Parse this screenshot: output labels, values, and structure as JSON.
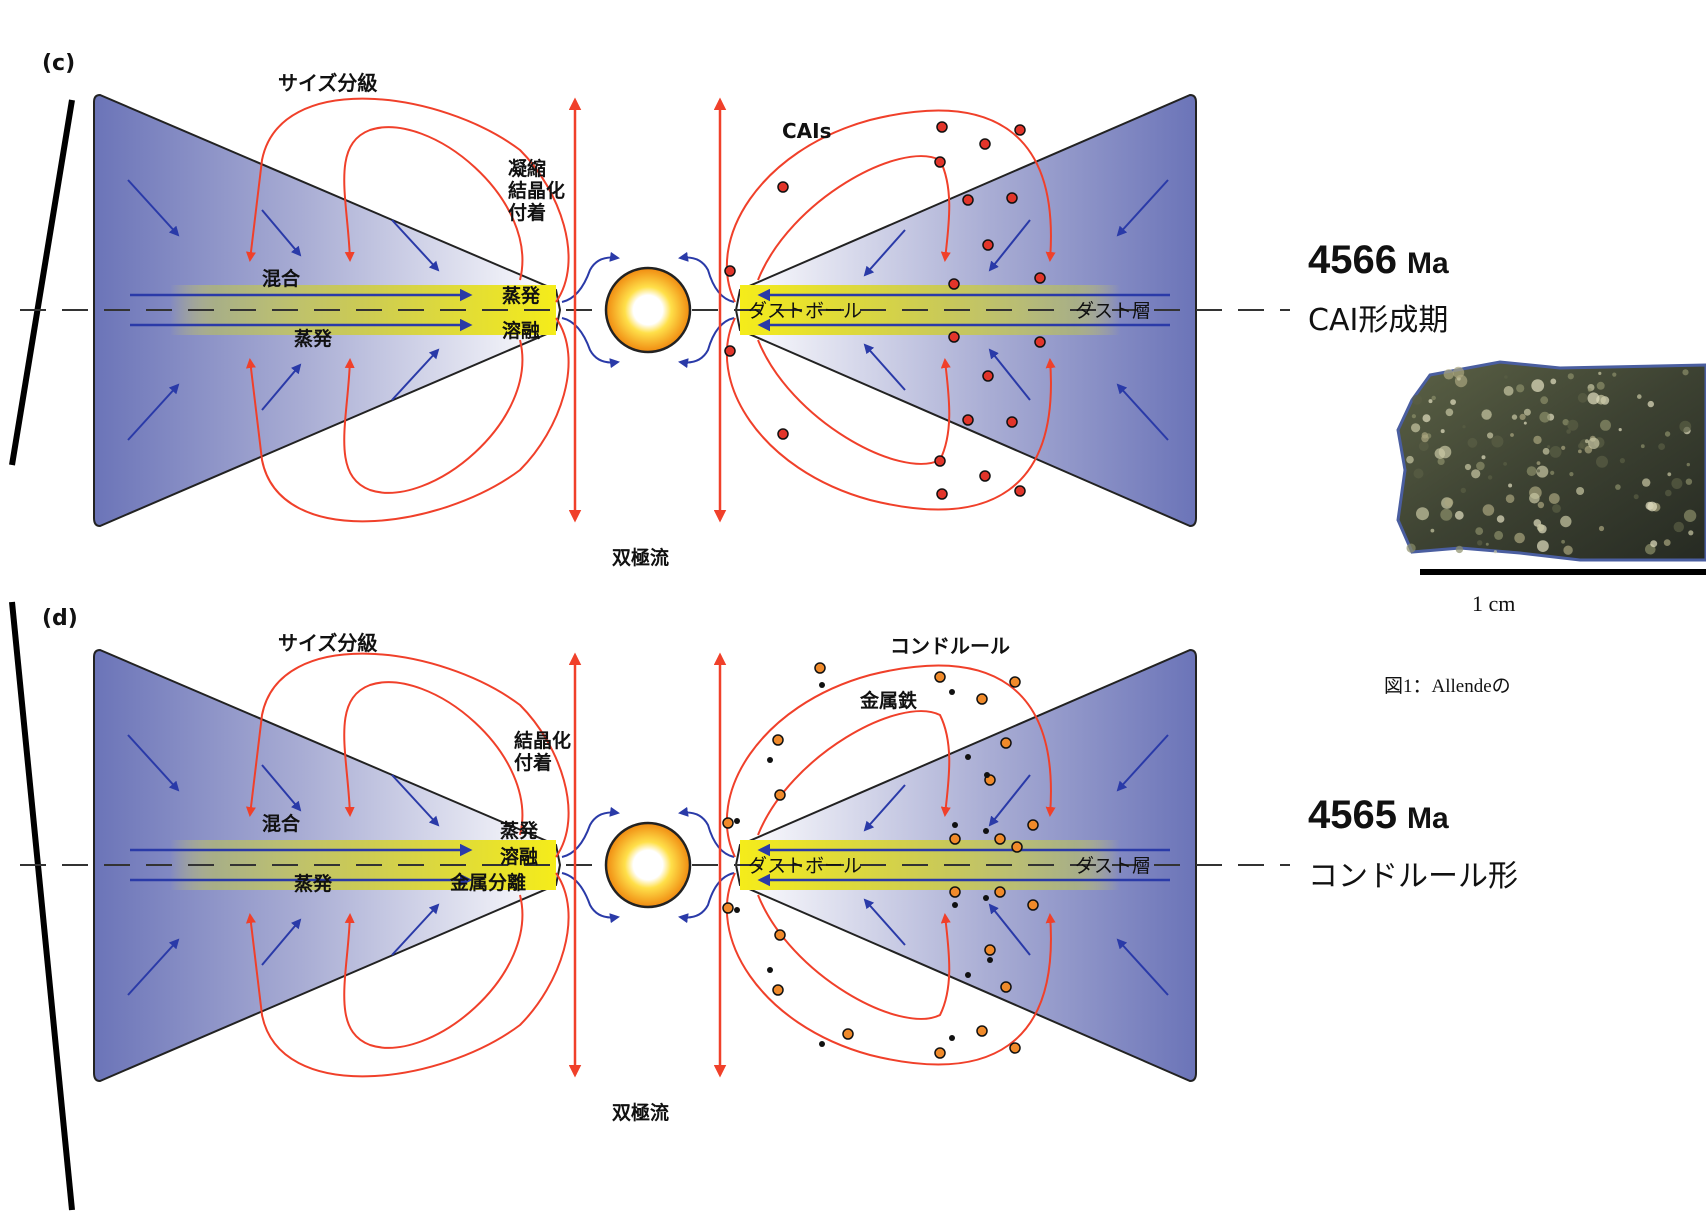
{
  "panels": [
    {
      "letter": "(c)",
      "top_label": "サイズ分級",
      "near_star_label": [
        "凝縮",
        "結晶化",
        "付着"
      ],
      "inner_labels": [
        "蒸発",
        "溶融"
      ],
      "mix_label": "混合",
      "evap_label": "蒸発",
      "ball_label": "ダストボール",
      "layer_label": "ダスト層",
      "particle_label": "CAIs",
      "jet_label": "双極流",
      "age_value": "4566",
      "age_unit": "Ma",
      "event": "CAI形成期"
    },
    {
      "letter": "(d)",
      "top_label": "サイズ分級",
      "near_star_label": [
        "結晶化",
        "付着"
      ],
      "inner_labels": [
        "蒸発",
        "溶融",
        "金属分離"
      ],
      "mix_label": "混合",
      "evap_label": "蒸発",
      "ball_label": "ダストボール",
      "layer_label": "ダスト層",
      "particle_label": "コンドルール",
      "metal_label": "金属鉄",
      "jet_label": "双極流",
      "age_value": "4565",
      "age_unit": "Ma",
      "event": "コンドルール形"
    }
  ],
  "photo": {
    "scale_label": "1 cm",
    "caption": "図1：Allendeの"
  },
  "colors": {
    "disk": "#6b74b8",
    "flow_red": "#f0402a",
    "arrow_blue": "#2a3aa8",
    "band_yellow": "#f2ea1e",
    "cai_dot": "#e2352a",
    "chondrule_dot": "#f08a2a"
  }
}
